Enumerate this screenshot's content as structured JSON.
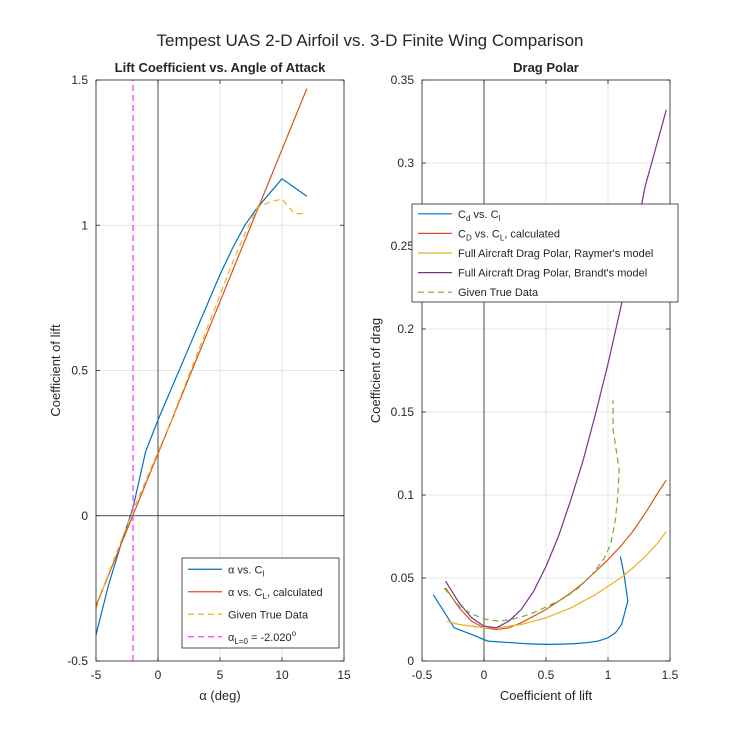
{
  "figure": {
    "title": "Tempest UAS 2-D Airfoil vs. 3-D Finite Wing Comparison"
  },
  "chart_data": [
    {
      "type": "line",
      "title": "Lift Coefficient vs. Angle of Attack",
      "xlabel": "α (deg)",
      "ylabel": "Coefficient of lift",
      "xlim": [
        -5,
        15
      ],
      "ylim": [
        -0.5,
        1.5
      ],
      "xticks": [
        "-5",
        "0",
        "5",
        "10",
        "15"
      ],
      "yticks": [
        "-0.5",
        "0",
        "0.5",
        "1",
        "1.5"
      ],
      "grid": true,
      "legend_position": "bottom-right",
      "series": [
        {
          "name": "α vs. C_l",
          "legend": {
            "pre": "α vs. C",
            "sub": "l",
            "post": ""
          },
          "color": "#0072BD",
          "dash": "none",
          "x": [
            -5,
            -4,
            -3,
            -2,
            -1,
            0,
            1,
            2,
            3,
            4,
            5,
            6,
            7,
            8,
            9,
            10,
            11,
            12
          ],
          "y": [
            -0.41,
            -0.24,
            -0.1,
            0.03,
            0.22,
            0.33,
            0.43,
            0.53,
            0.63,
            0.73,
            0.83,
            0.92,
            1.0,
            1.06,
            1.11,
            1.16,
            1.13,
            1.1
          ]
        },
        {
          "name": "α vs. C_L, calculated",
          "legend": {
            "pre": "α vs. C",
            "sub": "L",
            "post": ", calculated"
          },
          "color": "#D95319",
          "dash": "none",
          "x": [
            -5,
            12
          ],
          "y": [
            -0.31,
            1.47
          ]
        },
        {
          "name": "Given True Data",
          "legend": {
            "pre": "Given True Data",
            "sub": "",
            "post": ""
          },
          "color": "#EDB120",
          "dash": "6,4",
          "x": [
            -5,
            -4,
            -3,
            -2,
            -1,
            0,
            1,
            2,
            3,
            4,
            5,
            6,
            7,
            8,
            9,
            10,
            11,
            12
          ],
          "y": [
            -0.32,
            -0.2,
            -0.09,
            0.02,
            0.12,
            0.22,
            0.32,
            0.43,
            0.54,
            0.65,
            0.76,
            0.87,
            0.97,
            1.06,
            1.08,
            1.09,
            1.04,
            1.04
          ]
        },
        {
          "name": "α_L=0 = -2.020°",
          "legend": {
            "pre": "α",
            "sub": "L=0",
            "post": " = -2.020",
            "sup": "o"
          },
          "color": "#FF33FF",
          "dash": "6,4",
          "x": [
            -2.02,
            -2.02
          ],
          "y": [
            -0.5,
            1.5
          ]
        }
      ]
    },
    {
      "type": "line",
      "title": "Drag Polar",
      "xlabel": "Coefficient of lift",
      "ylabel": "Coefficient of drag",
      "xlim": [
        -0.5,
        1.5
      ],
      "ylim": [
        0,
        0.35
      ],
      "xticks": [
        "-0.5",
        "0",
        "0.5",
        "1",
        "1.5"
      ],
      "yticks": [
        "0",
        "0.05",
        "0.1",
        "0.15",
        "0.2",
        "0.25",
        "0.3",
        "0.35"
      ],
      "grid": true,
      "legend_position": "top-left",
      "series": [
        {
          "name": "C_d vs. C_l",
          "legend": {
            "pre": "C",
            "sub": "d",
            "post": " vs. C",
            "sub2": "l"
          },
          "color": "#0072BD",
          "dash": "none",
          "x": [
            -0.41,
            -0.24,
            -0.1,
            0.03,
            0.22,
            0.33,
            0.43,
            0.53,
            0.63,
            0.73,
            0.83,
            0.92,
            1.0,
            1.06,
            1.11,
            1.16,
            1.13,
            1.1
          ],
          "y": [
            0.04,
            0.02,
            0.016,
            0.012,
            0.011,
            0.0105,
            0.0102,
            0.01,
            0.0102,
            0.0105,
            0.011,
            0.012,
            0.014,
            0.017,
            0.022,
            0.036,
            0.052,
            0.063
          ]
        },
        {
          "name": "C_D vs. C_L, calculated",
          "legend": {
            "pre": "C",
            "sub": "D",
            "post": " vs. C",
            "sub2": "L",
            "post2": ", calculated"
          },
          "color": "#D95319",
          "dash": "none",
          "x": [
            -0.31,
            -0.2,
            -0.1,
            0,
            0.1,
            0.2,
            0.3,
            0.4,
            0.5,
            0.6,
            0.7,
            0.8,
            0.9,
            1.0,
            1.1,
            1.2,
            1.3,
            1.4,
            1.47
          ],
          "y": [
            0.044,
            0.032,
            0.024,
            0.02,
            0.019,
            0.02,
            0.023,
            0.027,
            0.031,
            0.036,
            0.041,
            0.047,
            0.054,
            0.061,
            0.069,
            0.078,
            0.089,
            0.101,
            0.109
          ]
        },
        {
          "name": "Full Aircraft Drag Polar, Raymer's model",
          "legend": {
            "pre": "Full Aircraft Drag Polar, Raymer's model",
            "sub": "",
            "post": ""
          },
          "color": "#EDB120",
          "dash": "none",
          "x": [
            -0.3,
            -0.2,
            -0.1,
            0,
            0.1,
            0.2,
            0.3,
            0.4,
            0.5,
            0.6,
            0.7,
            0.8,
            0.9,
            1.0,
            1.1,
            1.2,
            1.3,
            1.4,
            1.47
          ],
          "y": [
            0.024,
            0.022,
            0.021,
            0.02,
            0.02,
            0.021,
            0.022,
            0.024,
            0.026,
            0.029,
            0.032,
            0.036,
            0.04,
            0.045,
            0.05,
            0.056,
            0.063,
            0.071,
            0.078
          ]
        },
        {
          "name": "Full Aircraft Drag Polar, Brandt's model",
          "legend": {
            "pre": "Full Aircraft Drag Polar, Brandt's model",
            "sub": "",
            "post": ""
          },
          "color": "#7E2F8E",
          "dash": "none",
          "x": [
            -0.31,
            -0.2,
            -0.1,
            0,
            0.1,
            0.2,
            0.3,
            0.4,
            0.5,
            0.6,
            0.7,
            0.8,
            0.9,
            1.0,
            1.1,
            1.2,
            1.3,
            1.4,
            1.47
          ],
          "y": [
            0.048,
            0.035,
            0.026,
            0.021,
            0.02,
            0.024,
            0.031,
            0.042,
            0.057,
            0.075,
            0.097,
            0.121,
            0.149,
            0.179,
            0.212,
            0.248,
            0.286,
            0.313,
            0.332
          ]
        },
        {
          "name": "Given True Data",
          "legend": {
            "pre": "Given True Data",
            "sub": "",
            "post": ""
          },
          "color": "#77AC30",
          "dash": "6,4",
          "x": [
            -0.32,
            -0.2,
            -0.09,
            0.02,
            0.12,
            0.22,
            0.32,
            0.43,
            0.54,
            0.65,
            0.76,
            0.87,
            0.97,
            1.02,
            1.06,
            1.08,
            1.09,
            1.04,
            1.04
          ],
          "y": [
            0.044,
            0.033,
            0.028,
            0.025,
            0.024,
            0.025,
            0.027,
            0.03,
            0.034,
            0.038,
            0.044,
            0.052,
            0.062,
            0.07,
            0.085,
            0.1,
            0.115,
            0.14,
            0.157
          ]
        }
      ]
    }
  ]
}
